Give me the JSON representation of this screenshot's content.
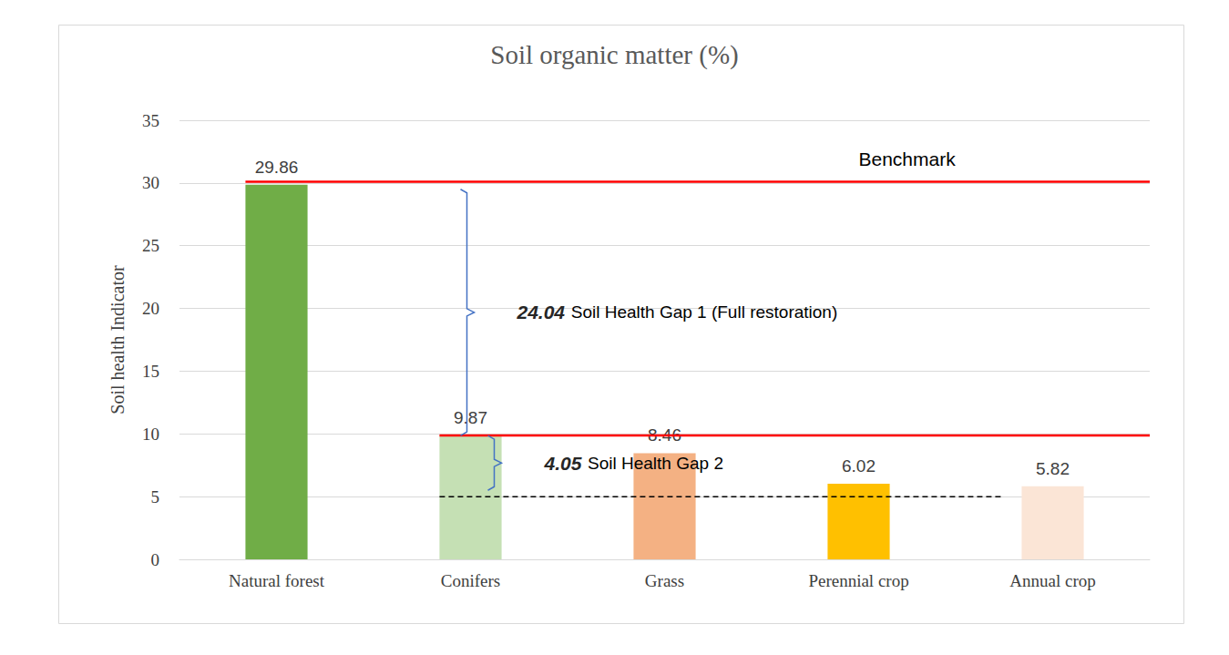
{
  "chart_data": {
    "type": "bar",
    "title": "Soil organic matter (%)",
    "y_label": "Soil health Indicator",
    "categories": [
      "Natural forest",
      "Conifers",
      "Grass",
      "Perennial crop",
      "Annual crop"
    ],
    "values": [
      29.86,
      9.87,
      8.46,
      6.02,
      5.82
    ],
    "colors": [
      "#70ad47",
      "#c5e0b4",
      "#f4b183",
      "#ffc000",
      "#fbe5d6"
    ],
    "ylim": [
      0,
      35
    ],
    "yticks": [
      0,
      5,
      10,
      15,
      20,
      25,
      30,
      35
    ],
    "grid": true,
    "data_labels": true,
    "reference_lines": [
      {
        "label": "Benchmark",
        "value": 30.1,
        "color": "#ff0000",
        "line_style": "solid",
        "from": "Natural forest"
      },
      {
        "value": 9.87,
        "color": "#ff0000",
        "line_style": "solid",
        "from": "Conifers"
      },
      {
        "value": 5,
        "color": "#000000",
        "line_style": "dashed",
        "from": "Conifers",
        "to": "Annual crop"
      }
    ],
    "gaps": [
      {
        "value": 24.04,
        "label": "Soil Health Gap 1 (Full restoration)",
        "span": [
          9.87,
          29.5
        ],
        "color": "#4472c4"
      },
      {
        "value": 4.05,
        "label": "Soil Health Gap 2",
        "span": [
          5.5,
          9.87
        ],
        "color": "#4472c4"
      }
    ]
  }
}
